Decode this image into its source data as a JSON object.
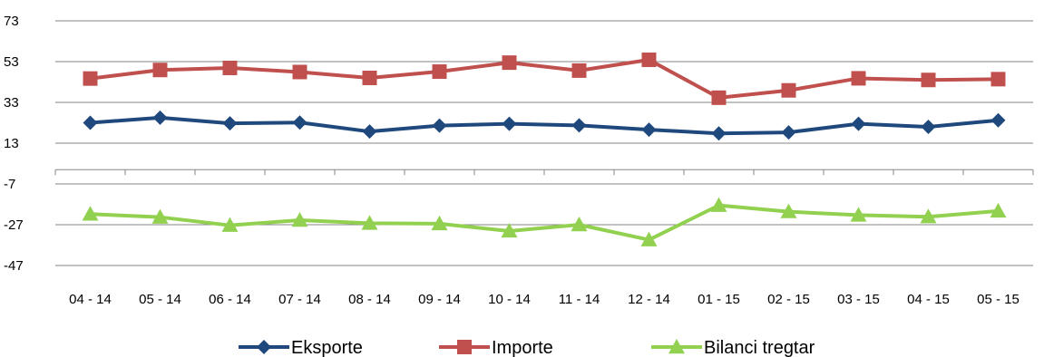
{
  "chart_data": {
    "type": "line",
    "title": "",
    "xlabel": "",
    "ylabel": "",
    "categories": [
      "04 - 14",
      "05 - 14",
      "06 - 14",
      "07 - 14",
      "08 - 14",
      "09 - 14",
      "10 - 14",
      "11 - 14",
      "12 - 14",
      "01 - 15",
      "02 - 15",
      "03 - 15",
      "04 - 15",
      "05 - 15"
    ],
    "y_ticks": [
      "73",
      "53",
      "33",
      "13",
      "-7",
      "-27",
      "-47"
    ],
    "ylim": [
      -47,
      73
    ],
    "grid": true,
    "legend_position": "bottom",
    "series": [
      {
        "name": "Eksporte",
        "color": "#1F497D",
        "marker": "diamond",
        "values": [
          23.0,
          25.5,
          22.7,
          23.1,
          18.7,
          21.6,
          22.5,
          21.7,
          19.6,
          17.8,
          18.3,
          22.5,
          21.0,
          24.2
        ]
      },
      {
        "name": "Importe",
        "color": "#C0504D",
        "marker": "square",
        "values": [
          44.7,
          48.9,
          49.9,
          47.9,
          45.0,
          48.1,
          52.5,
          48.6,
          53.9,
          35.3,
          38.9,
          44.8,
          44.0,
          44.4
        ]
      },
      {
        "name": "Bilanci tregtar",
        "color": "#92D050",
        "marker": "triangle",
        "values": [
          -21.8,
          -23.3,
          -27.3,
          -24.8,
          -26.3,
          -26.5,
          -30.1,
          -27.0,
          -34.4,
          -17.5,
          -20.6,
          -22.3,
          -23.1,
          -20.3
        ]
      }
    ]
  }
}
